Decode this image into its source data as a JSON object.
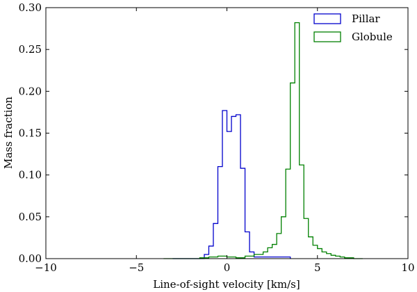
{
  "chart_data": {
    "type": "histogram-step",
    "title": "",
    "xlabel": "Line-of-sight velocity [km/s]",
    "ylabel": "Mass fraction",
    "xlim": [
      -10,
      10
    ],
    "ylim": [
      0,
      0.3
    ],
    "xticks": [
      -10,
      -5,
      0,
      5,
      10
    ],
    "xtick_labels": [
      "−10",
      "−5",
      "0",
      "5",
      "10"
    ],
    "yticks": [
      0.0,
      0.05,
      0.1,
      0.15,
      0.2,
      0.25,
      0.3
    ],
    "ytick_labels": [
      "0.00",
      "0.05",
      "0.10",
      "0.15",
      "0.20",
      "0.25",
      "0.30"
    ],
    "legend_position": "top-right",
    "series": [
      {
        "name": "Pillar",
        "color": "#0000cc",
        "bin_edges": [
          -3,
          -1.25,
          -1.0,
          -0.75,
          -0.5,
          -0.25,
          0.0,
          0.25,
          0.5,
          0.75,
          1.0,
          1.25,
          1.5,
          3.5
        ],
        "values": [
          0.0,
          0.005,
          0.015,
          0.042,
          0.11,
          0.177,
          0.152,
          0.17,
          0.172,
          0.108,
          0.032,
          0.008,
          0.002
        ]
      },
      {
        "name": "Globule",
        "color": "#008000",
        "bin_edges": [
          -3.5,
          -1.5,
          -1.0,
          -0.5,
          0.0,
          0.5,
          1.0,
          1.5,
          2.0,
          2.25,
          2.5,
          2.75,
          3.0,
          3.25,
          3.5,
          3.75,
          4.0,
          4.25,
          4.5,
          4.75,
          5.0,
          5.25,
          5.5,
          5.75,
          6.0,
          6.25,
          6.5,
          7.0,
          7.5
        ],
        "values": [
          0.0,
          0.001,
          0.002,
          0.003,
          0.002,
          0.001,
          0.003,
          0.005,
          0.008,
          0.013,
          0.017,
          0.03,
          0.05,
          0.107,
          0.21,
          0.282,
          0.112,
          0.048,
          0.026,
          0.016,
          0.012,
          0.008,
          0.006,
          0.004,
          0.003,
          0.002,
          0.001,
          0.0
        ]
      }
    ]
  }
}
